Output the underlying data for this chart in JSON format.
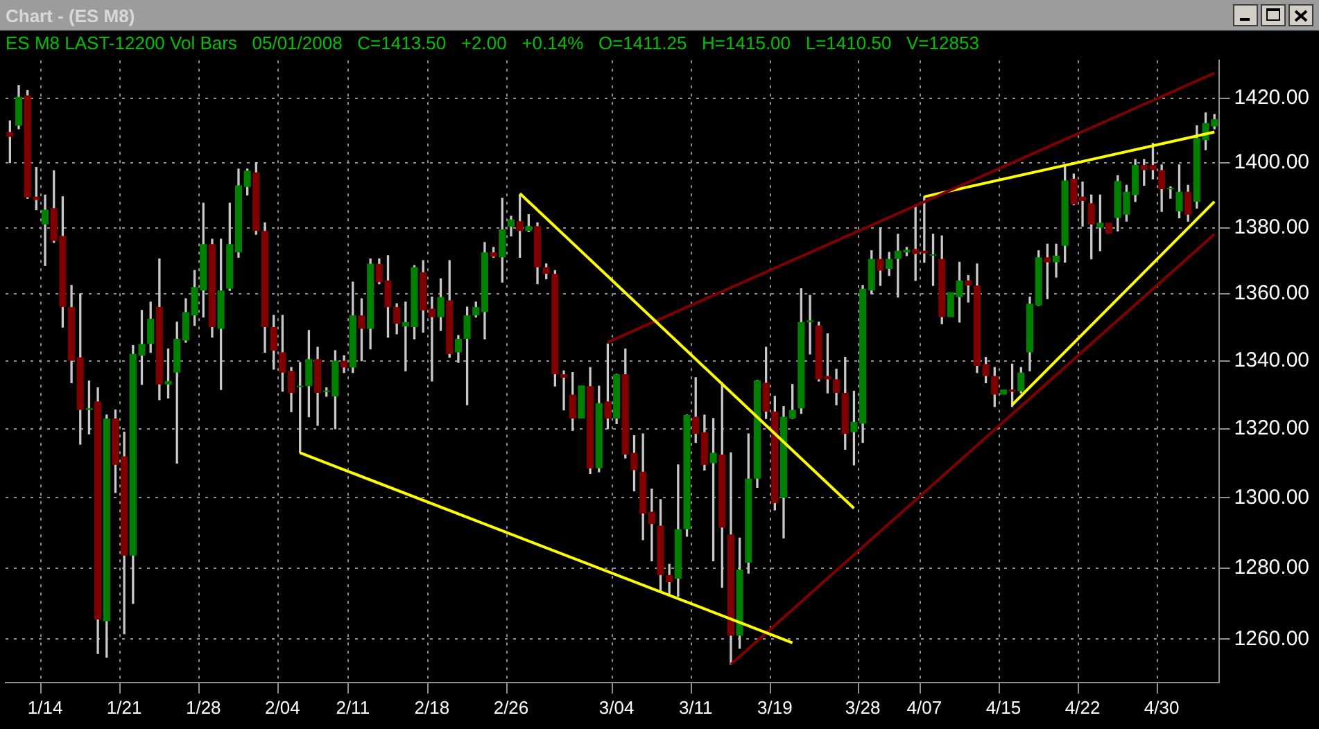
{
  "chart_data": {
    "type": "candlestick",
    "title": "Chart - (ES M8)",
    "subtitle": "ES M8 LAST-12200 Vol Bars   05/01/2008   C=1413.50   +2.00   +0.14%   O=1411.25   H=1415.00   L=1410.50   V=12853",
    "categories": [
      null,
      null,
      null,
      null,
      "1/14",
      null,
      null,
      null,
      null,
      null,
      null,
      null,
      null,
      "1/21",
      null,
      null,
      null,
      null,
      null,
      null,
      null,
      null,
      "1/28",
      null,
      null,
      null,
      null,
      null,
      null,
      null,
      null,
      "2/04",
      null,
      null,
      null,
      null,
      null,
      null,
      null,
      "2/11",
      null,
      null,
      null,
      null,
      null,
      null,
      null,
      null,
      "2/18",
      null,
      null,
      null,
      null,
      null,
      null,
      null,
      null,
      "2/26",
      null,
      null,
      null,
      null,
      null,
      null,
      null,
      null,
      null,
      null,
      null,
      "3/04",
      null,
      null,
      null,
      null,
      null,
      null,
      null,
      null,
      "3/11",
      null,
      null,
      null,
      null,
      null,
      null,
      null,
      null,
      "3/19",
      null,
      null,
      null,
      null,
      null,
      null,
      null,
      null,
      null,
      "3/28",
      null,
      null,
      null,
      null,
      null,
      null,
      "4/07",
      null,
      null,
      null,
      null,
      null,
      null,
      null,
      null,
      "4/15",
      null,
      null,
      null,
      null,
      null,
      null,
      null,
      null,
      "4/22",
      null,
      null,
      null,
      null,
      null,
      null,
      null,
      null,
      "4/30",
      null,
      null,
      null,
      null,
      null,
      null
    ],
    "ohlc": [
      [
        1409.5,
        1413,
        1400,
        1408
      ],
      [
        1411.5,
        1424,
        1410.5,
        1420.5
      ],
      [
        1421,
        1422.5,
        1389,
        1389.3
      ],
      [
        1389.5,
        1398.5,
        1385.5,
        1388.5
      ],
      [
        1381,
        1390,
        1368.5,
        1385.5
      ],
      [
        1386,
        1397.5,
        1375.5,
        1376
      ],
      [
        1377.5,
        1389.5,
        1350,
        1356
      ],
      [
        1356,
        1362.5,
        1333.5,
        1340
      ],
      [
        1341,
        1360,
        1315.5,
        1325.5
      ],
      [
        1325.5,
        1334,
        1318.5,
        1326
      ],
      [
        1328,
        1332,
        1256,
        1265.5
      ],
      [
        1265,
        1324,
        1255,
        1323
      ],
      [
        1323,
        1325.5,
        1301.5,
        1309.5
      ],
      [
        1312,
        1319,
        1261.5,
        1283.5
      ],
      [
        1283.5,
        1344.5,
        1270,
        1342
      ],
      [
        1341.5,
        1355,
        1333,
        1345
      ],
      [
        1345,
        1357.5,
        1342.5,
        1352.5
      ],
      [
        1356,
        1370.5,
        1328.5,
        1333
      ],
      [
        1333,
        1343.5,
        1329,
        1334
      ],
      [
        1336.5,
        1351.5,
        1310,
        1346.5
      ],
      [
        1346,
        1358.5,
        1345.5,
        1354.5
      ],
      [
        1353.5,
        1367,
        1350.5,
        1362
      ],
      [
        1361,
        1387.5,
        1353,
        1375
      ],
      [
        1375,
        1376.5,
        1347,
        1350
      ],
      [
        1349.5,
        1376.5,
        1331.5,
        1361
      ],
      [
        1361.5,
        1387.5,
        1361,
        1375
      ],
      [
        1372.5,
        1398,
        1371,
        1393
      ],
      [
        1392.5,
        1398,
        1390,
        1397.5
      ],
      [
        1397,
        1400,
        1378,
        1379
      ],
      [
        1379,
        1381.5,
        1342.5,
        1350
      ],
      [
        1350,
        1353.5,
        1337.5,
        1343
      ],
      [
        1342.5,
        1353.5,
        1331,
        1336.5
      ],
      [
        1337,
        1338,
        1325,
        1330.5
      ],
      [
        1332.2,
        1339.5,
        1313,
        1332.6
      ],
      [
        1332.5,
        1349,
        1323.5,
        1340.5
      ],
      [
        1340.5,
        1344,
        1321,
        1330.5
      ],
      [
        1330.8,
        1332,
        1329.5,
        1331.2
      ],
      [
        1329.5,
        1343,
        1320,
        1340
      ],
      [
        1340,
        1341.5,
        1336.5,
        1338
      ],
      [
        1338,
        1363.5,
        1336.5,
        1353.5
      ],
      [
        1353.5,
        1358.5,
        1340,
        1349.5
      ],
      [
        1349.5,
        1370.5,
        1343.5,
        1369
      ],
      [
        1369,
        1370.5,
        1363,
        1363.5
      ],
      [
        1364,
        1371.5,
        1347,
        1356
      ],
      [
        1356,
        1357,
        1348,
        1351
      ],
      [
        1350.2,
        1357.5,
        1337,
        1351.5
      ],
      [
        1350,
        1368.5,
        1346.5,
        1368
      ],
      [
        1366.5,
        1370,
        1348.5,
        1355
      ],
      [
        1355.5,
        1359,
        1334,
        1353
      ],
      [
        1353,
        1364.5,
        1349,
        1359
      ],
      [
        1358,
        1370,
        1341,
        1342
      ],
      [
        1342.5,
        1347.5,
        1339.5,
        1346.5
      ],
      [
        1346.5,
        1356,
        1327,
        1353.5
      ],
      [
        1353.5,
        1357.5,
        1353,
        1356
      ],
      [
        1354.5,
        1375.5,
        1346.5,
        1372.5
      ],
      [
        1372.5,
        1374,
        1371,
        1371.2
      ],
      [
        1371,
        1389,
        1363.5,
        1379.5
      ],
      [
        1380.3,
        1383.5,
        1377.5,
        1382.5
      ],
      [
        1382,
        1390,
        1371,
        1379
      ],
      [
        1379,
        1384,
        1378.8,
        1380.5
      ],
      [
        1380.5,
        1381.5,
        1363,
        1368
      ],
      [
        1368,
        1369,
        1364.5,
        1366
      ],
      [
        1366,
        1367,
        1332.5,
        1336
      ],
      [
        1336,
        1337,
        1325.5,
        1335
      ],
      [
        1330,
        1336.5,
        1319.5,
        1323
      ],
      [
        1323,
        1332.7,
        1323,
        1332.7
      ],
      [
        1332.5,
        1338,
        1307,
        1308.5
      ],
      [
        1308.5,
        1332.5,
        1307.5,
        1327.5
      ],
      [
        1328,
        1345,
        1320,
        1323
      ],
      [
        1323,
        1336,
        1321.5,
        1336
      ],
      [
        1336,
        1343.5,
        1311.5,
        1312.5
      ],
      [
        1313,
        1318,
        1302,
        1308
      ],
      [
        1307.5,
        1318.5,
        1288,
        1295.5
      ],
      [
        1296,
        1302.5,
        1282,
        1292.5
      ],
      [
        1292,
        1299.5,
        1273,
        1278
      ],
      [
        1278,
        1281,
        1272.5,
        1276
      ],
      [
        1277,
        1309.5,
        1272,
        1291
      ],
      [
        1291,
        1324,
        1289,
        1324
      ],
      [
        1323.5,
        1335,
        1316,
        1318.5
      ],
      [
        1319,
        1324,
        1308,
        1309.5
      ],
      [
        1310,
        1323,
        1282,
        1313
      ],
      [
        1312.5,
        1333.5,
        1274.5,
        1291.5
      ],
      [
        1289.5,
        1313,
        1253,
        1261
      ],
      [
        1261,
        1288.5,
        1257.5,
        1279.5
      ],
      [
        1281.5,
        1318.5,
        1278.5,
        1305.5
      ],
      [
        1305.5,
        1334.2,
        1303,
        1334.2
      ],
      [
        1333.5,
        1344,
        1323,
        1325
      ],
      [
        1325,
        1329.5,
        1296.5,
        1298.5
      ],
      [
        1300,
        1326.5,
        1288.5,
        1323.5
      ],
      [
        1323,
        1333,
        1323,
        1325.5
      ],
      [
        1326,
        1361.5,
        1324.5,
        1351.5
      ],
      [
        1351.5,
        1359.5,
        1342,
        1352
      ],
      [
        1350.5,
        1351.5,
        1334,
        1334.5
      ],
      [
        1335.5,
        1348,
        1330.5,
        1334.5
      ],
      [
        1334.5,
        1337.5,
        1327,
        1330.5
      ],
      [
        1330.5,
        1341,
        1314,
        1318.5
      ],
      [
        1319,
        1331,
        1309.5,
        1322
      ],
      [
        1321.5,
        1362.5,
        1316,
        1361.5
      ],
      [
        1361,
        1373,
        1360,
        1370.5
      ],
      [
        1370.5,
        1380,
        1362.5,
        1367
      ],
      [
        1367.5,
        1372.5,
        1365.5,
        1370.5
      ],
      [
        1370.5,
        1378,
        1359,
        1373
      ],
      [
        1372.5,
        1374,
        1371.5,
        1373.3
      ],
      [
        1373.5,
        1387,
        1364,
        1372
      ],
      [
        1373,
        1389.5,
        1369.5,
        1372.2
      ],
      [
        1371.5,
        1378,
        1362.5,
        1371.7
      ],
      [
        1370.5,
        1377.5,
        1351,
        1353
      ],
      [
        1353,
        1360.5,
        1353,
        1360.5
      ],
      [
        1359,
        1369.5,
        1351.5,
        1364
      ],
      [
        1364,
        1365.5,
        1357.5,
        1362.5
      ],
      [
        1362.5,
        1369,
        1336.5,
        1338.5
      ],
      [
        1339,
        1341,
        1333.5,
        1335.5
      ],
      [
        1335.5,
        1338,
        1326.5,
        1330
      ],
      [
        1330,
        1331.5,
        1330,
        1331.5
      ],
      [
        1331.5,
        1339,
        1326.5,
        1330.8
      ],
      [
        1331,
        1338,
        1330.5,
        1336.5
      ],
      [
        1342.5,
        1359,
        1337,
        1357
      ],
      [
        1356.5,
        1373,
        1356.5,
        1371
      ],
      [
        1371,
        1375,
        1358.5,
        1369.5
      ],
      [
        1369.5,
        1375,
        1365,
        1371.5
      ],
      [
        1374.5,
        1399,
        1369.5,
        1394.5
      ],
      [
        1395,
        1396.5,
        1387,
        1387.2
      ],
      [
        1389.5,
        1394,
        1380.5,
        1388.2
      ],
      [
        1387.5,
        1390,
        1370.5,
        1381
      ],
      [
        1380,
        1390,
        1373,
        1381.5
      ],
      [
        1381.5,
        1381.5,
        1378.2,
        1378.2
      ],
      [
        1383,
        1396,
        1379,
        1394.3
      ],
      [
        1384,
        1393,
        1382,
        1391
      ],
      [
        1390,
        1401,
        1388,
        1399.3
      ],
      [
        1399.3,
        1401,
        1393,
        1397.7
      ],
      [
        1399.3,
        1406,
        1395,
        1397.7
      ],
      [
        1397.7,
        1399.3,
        1385,
        1391.8
      ],
      [
        1391.8,
        1392.5,
        1389,
        1392
      ],
      [
        1385,
        1399.3,
        1383,
        1391
      ],
      [
        1391,
        1393,
        1382,
        1384
      ],
      [
        1388,
        1411.5,
        1386,
        1407.6
      ],
      [
        1407,
        1415.5,
        1404,
        1412.3
      ],
      [
        1411.25,
        1415,
        1410.5,
        1413.5
      ]
    ],
    "colors": [
      "#800000",
      "#008000",
      "#800000",
      "#800000",
      "#008000",
      "#800000",
      "#800000",
      "#800000",
      "#800000",
      "#008000",
      "#800000",
      "#008000",
      "#800000",
      "#800000",
      "#008000",
      "#008000",
      "#008000",
      "#800000",
      "#008000",
      "#008000",
      "#008000",
      "#008000",
      "#008000",
      "#800000",
      "#008000",
      "#008000",
      "#008000",
      "#008000",
      "#800000",
      "#800000",
      "#800000",
      "#800000",
      "#800000",
      "#008000",
      "#008000",
      "#800000",
      "#008000",
      "#008000",
      "#800000",
      "#008000",
      "#800000",
      "#008000",
      "#800000",
      "#800000",
      "#800000",
      "#008000",
      "#008000",
      "#800000",
      "#800000",
      "#008000",
      "#800000",
      "#008000",
      "#008000",
      "#008000",
      "#008000",
      "#800000",
      "#008000",
      "#008000",
      "#800000",
      "#008000",
      "#800000",
      "#800000",
      "#800000",
      "#800000",
      "#800000",
      "#008000",
      "#800000",
      "#008000",
      "#800000",
      "#008000",
      "#800000",
      "#800000",
      "#800000",
      "#800000",
      "#800000",
      "#800000",
      "#008000",
      "#008000",
      "#800000",
      "#800000",
      "#008000",
      "#800000",
      "#800000",
      "#008000",
      "#008000",
      "#008000",
      "#800000",
      "#800000",
      "#008000",
      "#008000",
      "#008000",
      "#008000",
      "#800000",
      "#800000",
      "#800000",
      "#800000",
      "#008000",
      "#008000",
      "#008000",
      "#800000",
      "#008000",
      "#008000",
      "#008000",
      "#800000",
      "#800000",
      "#008000",
      "#800000",
      "#008000",
      "#008000",
      "#800000",
      "#800000",
      "#800000",
      "#800000",
      "#008000",
      "#800000",
      "#008000",
      "#008000",
      "#008000",
      "#800000",
      "#008000",
      "#008000",
      "#800000",
      "#800000",
      "#800000",
      "#008000",
      "#800000",
      "#008000",
      "#008000",
      "#008000",
      "#800000",
      "#800000",
      "#800000",
      "#008000",
      "#008000",
      "#800000",
      "#008000",
      "#008000",
      "#008000"
    ],
    "series": [
      {
        "type": "line",
        "color": "#ffff00",
        "values": [
          null,
          null,
          null,
          null,
          null,
          null,
          null,
          null,
          null,
          null,
          null,
          null,
          null,
          null,
          null,
          null,
          null,
          null,
          null,
          null,
          null,
          null,
          null,
          null,
          null,
          null,
          null,
          null,
          null,
          null,
          null,
          null,
          null,
          1313,
          null,
          null,
          null,
          null,
          null,
          null,
          null,
          null,
          null,
          null,
          null,
          null,
          null,
          null,
          null,
          null,
          null,
          null,
          null,
          null,
          null,
          null,
          null,
          null,
          null,
          null,
          null,
          null,
          null,
          null,
          null,
          null,
          null,
          null,
          null,
          null,
          null,
          null,
          null,
          null,
          null,
          null,
          null,
          null,
          null,
          null,
          null,
          null,
          null,
          null,
          null,
          null,
          null,
          null,
          null,
          1259,
          null,
          null,
          null,
          null,
          null,
          null,
          null,
          null,
          null,
          null,
          null,
          null,
          null,
          null,
          null,
          null,
          null,
          null,
          null,
          null,
          null,
          null,
          null,
          null,
          null,
          null,
          null,
          null,
          null,
          null,
          null,
          null,
          null,
          null,
          null,
          null,
          null,
          null,
          null,
          null,
          null,
          null,
          null,
          null,
          null,
          null,
          null,
          null
        ]
      },
      {
        "type": "line",
        "color": "#ffff00",
        "values": [
          null,
          null,
          null,
          null,
          null,
          null,
          null,
          null,
          null,
          null,
          null,
          null,
          null,
          null,
          null,
          null,
          null,
          null,
          null,
          null,
          null,
          null,
          null,
          null,
          null,
          null,
          null,
          null,
          null,
          null,
          null,
          null,
          null,
          null,
          null,
          null,
          null,
          null,
          null,
          null,
          null,
          null,
          null,
          null,
          null,
          null,
          null,
          null,
          null,
          null,
          null,
          null,
          null,
          null,
          null,
          null,
          null,
          null,
          1390.5,
          null,
          null,
          null,
          null,
          null,
          null,
          null,
          null,
          null,
          null,
          null,
          null,
          null,
          null,
          null,
          null,
          null,
          null,
          null,
          null,
          null,
          null,
          null,
          null,
          null,
          null,
          null,
          null,
          null,
          null,
          null,
          null,
          null,
          null,
          null,
          null,
          null,
          1297,
          null,
          null,
          null,
          null,
          null,
          null,
          null,
          null,
          null,
          null,
          null,
          null,
          null,
          null,
          null,
          null,
          null,
          null,
          null,
          null,
          null,
          null,
          null,
          null,
          null,
          null,
          null,
          null,
          null,
          null,
          null,
          null,
          null,
          null,
          null,
          null,
          null,
          null,
          null,
          null,
          null
        ]
      },
      {
        "type": "line",
        "color": "#800000",
        "values": [
          null,
          null,
          null,
          null,
          null,
          null,
          null,
          null,
          null,
          null,
          null,
          null,
          null,
          null,
          null,
          null,
          null,
          null,
          null,
          null,
          null,
          null,
          null,
          null,
          null,
          null,
          null,
          null,
          null,
          null,
          null,
          null,
          null,
          null,
          null,
          null,
          null,
          null,
          null,
          null,
          null,
          null,
          null,
          null,
          null,
          null,
          null,
          null,
          null,
          null,
          null,
          null,
          null,
          null,
          null,
          null,
          null,
          null,
          null,
          null,
          null,
          null,
          null,
          null,
          null,
          null,
          null,
          null,
          null,
          null,
          null,
          null,
          null,
          null,
          null,
          null,
          null,
          null,
          null,
          null,
          null,
          null,
          1253,
          null,
          null,
          null,
          null,
          null,
          null,
          null,
          null,
          null,
          null,
          null,
          null,
          null,
          null,
          null,
          null,
          null,
          null,
          null,
          null,
          null,
          null,
          null,
          null,
          null,
          null,
          null,
          null,
          null,
          null,
          null,
          null,
          null,
          null,
          null,
          null,
          null,
          null,
          null,
          null,
          null,
          null,
          null,
          null,
          null,
          null,
          null,
          null,
          null,
          null,
          null,
          null,
          null,
          null,
          1378
        ]
      },
      {
        "type": "line",
        "color": "#800000",
        "values": [
          null,
          null,
          null,
          null,
          null,
          null,
          null,
          null,
          null,
          null,
          null,
          null,
          null,
          null,
          null,
          null,
          null,
          null,
          null,
          null,
          null,
          null,
          null,
          null,
          null,
          null,
          null,
          null,
          null,
          null,
          null,
          null,
          null,
          null,
          null,
          null,
          null,
          null,
          null,
          null,
          null,
          null,
          null,
          null,
          null,
          null,
          null,
          null,
          null,
          null,
          null,
          null,
          null,
          null,
          null,
          null,
          null,
          null,
          null,
          null,
          null,
          null,
          null,
          null,
          null,
          null,
          null,
          null,
          1345.5,
          null,
          null,
          null,
          null,
          null,
          null,
          null,
          null,
          null,
          null,
          null,
          null,
          null,
          null,
          null,
          null,
          null,
          null,
          null,
          null,
          null,
          null,
          null,
          null,
          null,
          null,
          null,
          null,
          null,
          null,
          null,
          null,
          null,
          null,
          null,
          null,
          null,
          null,
          null,
          null,
          null,
          null,
          null,
          null,
          null,
          null,
          null,
          null,
          null,
          null,
          null,
          null,
          null,
          null,
          null,
          null,
          null,
          null,
          null,
          null,
          null,
          null,
          null,
          null,
          null,
          null,
          null,
          null,
          1428
        ]
      },
      {
        "type": "line",
        "color": "#ffff00",
        "values": [
          null,
          null,
          null,
          null,
          null,
          null,
          null,
          null,
          null,
          null,
          null,
          null,
          null,
          null,
          null,
          null,
          null,
          null,
          null,
          null,
          null,
          null,
          null,
          null,
          null,
          null,
          null,
          null,
          null,
          null,
          null,
          null,
          null,
          null,
          null,
          null,
          null,
          null,
          null,
          null,
          null,
          null,
          null,
          null,
          null,
          null,
          null,
          null,
          null,
          null,
          null,
          null,
          null,
          null,
          null,
          null,
          null,
          null,
          null,
          null,
          null,
          null,
          null,
          null,
          null,
          null,
          null,
          null,
          null,
          null,
          null,
          null,
          null,
          null,
          null,
          null,
          null,
          null,
          null,
          null,
          null,
          null,
          null,
          null,
          null,
          null,
          null,
          null,
          null,
          null,
          null,
          null,
          null,
          null,
          null,
          null,
          null,
          null,
          null,
          null,
          null,
          null,
          null,
          null,
          1389.5,
          null,
          null,
          null,
          null,
          null,
          null,
          null,
          null,
          null,
          null,
          null,
          null,
          null,
          null,
          null,
          null,
          null,
          null,
          null,
          null,
          null,
          null,
          null,
          null,
          null,
          null,
          null,
          null,
          null,
          null,
          null,
          null,
          1409.5
        ]
      },
      {
        "type": "line",
        "color": "#ffff00",
        "values": [
          null,
          null,
          null,
          null,
          null,
          null,
          null,
          null,
          null,
          null,
          null,
          null,
          null,
          null,
          null,
          null,
          null,
          null,
          null,
          null,
          null,
          null,
          null,
          null,
          null,
          null,
          null,
          null,
          null,
          null,
          null,
          null,
          null,
          null,
          null,
          null,
          null,
          null,
          null,
          null,
          null,
          null,
          null,
          null,
          null,
          null,
          null,
          null,
          null,
          null,
          null,
          null,
          null,
          null,
          null,
          null,
          null,
          null,
          null,
          null,
          null,
          null,
          null,
          null,
          null,
          null,
          null,
          null,
          null,
          null,
          null,
          null,
          null,
          null,
          null,
          null,
          null,
          null,
          null,
          null,
          null,
          null,
          null,
          null,
          null,
          null,
          null,
          null,
          null,
          null,
          null,
          null,
          null,
          null,
          null,
          null,
          null,
          null,
          null,
          null,
          null,
          null,
          null,
          null,
          null,
          null,
          null,
          null,
          null,
          null,
          null,
          null,
          null,
          null,
          1327,
          null,
          null,
          null,
          null,
          null,
          null,
          null,
          null,
          null,
          null,
          null,
          null,
          null,
          null,
          null,
          null,
          null,
          null,
          null,
          null,
          null,
          null,
          1388
        ]
      }
    ],
    "ylim": [
      1248,
      1432
    ],
    "yticks": [
      {
        "value": 1260,
        "label": "1260.00"
      },
      {
        "value": 1280,
        "label": "1280.00"
      },
      {
        "value": 1300,
        "label": "1300.00"
      },
      {
        "value": 1320,
        "label": "1320.00"
      },
      {
        "value": 1340,
        "label": "1340.00"
      },
      {
        "value": 1360,
        "label": "1360.00"
      },
      {
        "value": 1380,
        "label": "1380.00"
      },
      {
        "value": 1400,
        "label": "1400.00"
      },
      {
        "value": 1420,
        "label": "1420.00"
      }
    ],
    "log": "y",
    "grid": true
  }
}
